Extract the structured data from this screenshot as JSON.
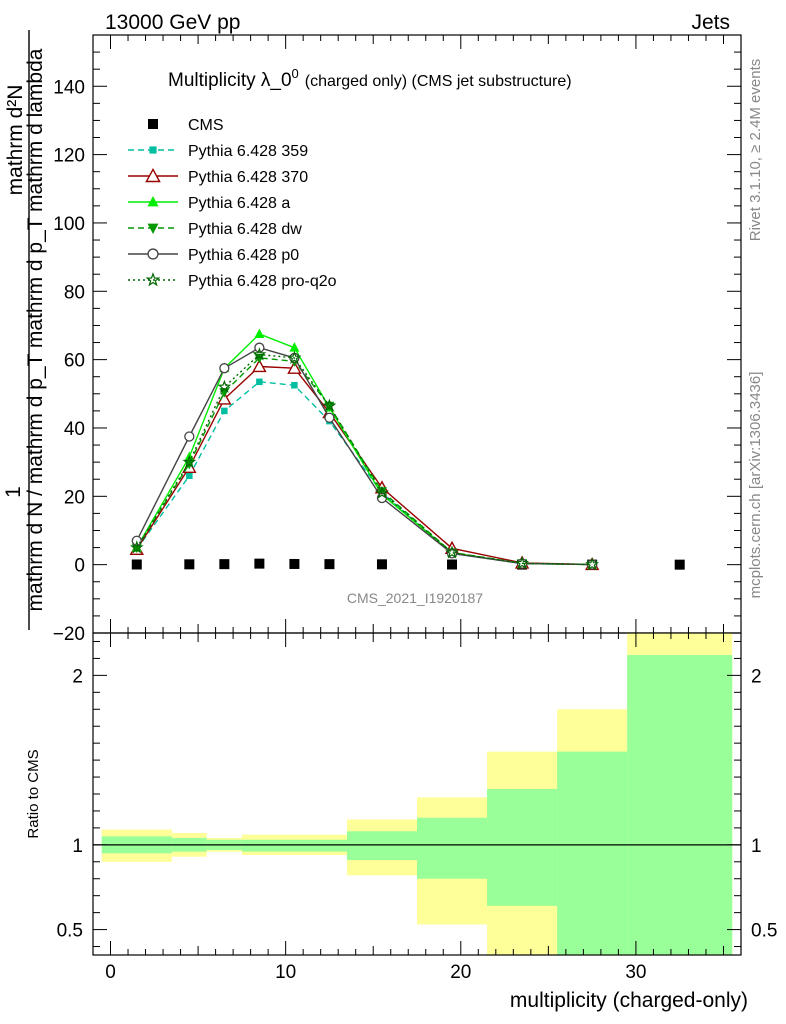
{
  "header": {
    "left": "13000 GeV pp",
    "right": "Jets"
  },
  "side": {
    "rivet": "Rivet 3.1.10, ≥ 2.4M events",
    "mcplots": "mcplots.cern.ch [arXiv:1306.3436]"
  },
  "chart_data": [
    {
      "type": "line",
      "title_main": "Multiplicity λ_0",
      "title_sup": "0",
      "title_small": "(charged only) (CMS jet substructure)",
      "ylabel_numerator": "1",
      "ylabel_denominator": "mathrm d N / mathrm d p_T mathrm d p_T mathrm d lambda",
      "ylabel_top": "mathrm d²N",
      "ylim": [
        -20,
        155
      ],
      "xlim": [
        -1,
        36
      ],
      "yticks": [
        -20,
        0,
        20,
        40,
        60,
        80,
        100,
        120,
        140
      ],
      "ytick_labels": [
        "−20",
        "0",
        "20",
        "40",
        "60",
        "80",
        "100",
        "120",
        "140"
      ],
      "watermark": "CMS_2021_I1920187",
      "x": [
        1.5,
        4.5,
        6.5,
        8.5,
        10.5,
        12.5,
        15.5,
        19.5,
        23.5,
        27.5,
        32.5
      ],
      "series": [
        {
          "name": "CMS",
          "color": "#000000",
          "marker": "square",
          "dash": "none",
          "values": [
            0.05,
            0.1,
            0.15,
            0.3,
            0.2,
            0.15,
            0.1,
            0.05,
            0.02,
            0.01,
            0.0
          ]
        },
        {
          "name": "Pythia 6.428 359",
          "color": "#00bfa0",
          "marker": "small-square",
          "dash": "dashed",
          "values": [
            4.5,
            26,
            45,
            53.5,
            52.5,
            42,
            21,
            3.3,
            0.3,
            0.05,
            null
          ]
        },
        {
          "name": "Pythia 6.428 370",
          "color": "#990000",
          "marker": "triangle-open",
          "dash": "none",
          "values": [
            4.5,
            28.5,
            48.5,
            58,
            57.5,
            44.5,
            22.5,
            4.8,
            0.5,
            0.05,
            null
          ]
        },
        {
          "name": "Pythia 6.428 a",
          "color": "#00ee00",
          "marker": "triangle",
          "dash": "none",
          "values": [
            5,
            31.5,
            57.5,
            67.5,
            63.5,
            46,
            20.5,
            3.5,
            0.3,
            0.03,
            null
          ]
        },
        {
          "name": "Pythia 6.428 dw",
          "color": "#009900",
          "marker": "triangle-down",
          "dash": "dashed",
          "values": [
            5,
            29.5,
            50.5,
            60.5,
            59.5,
            46.5,
            21.5,
            3.6,
            0.4,
            0.04,
            null
          ]
        },
        {
          "name": "Pythia 6.428 p0",
          "color": "#444444",
          "marker": "circle-open",
          "dash": "none",
          "values": [
            7,
            37.5,
            57.5,
            63.5,
            60.5,
            43,
            19.5,
            3.3,
            0.3,
            0.03,
            null
          ]
        },
        {
          "name": "Pythia 6.428 pro-q2o",
          "color": "#006600",
          "marker": "star",
          "dash": "dotted",
          "values": [
            5,
            30,
            52,
            61.5,
            60.5,
            46.5,
            21,
            3.5,
            0.4,
            0.04,
            null
          ]
        }
      ]
    },
    {
      "type": "area",
      "ylabel": "Ratio to CMS",
      "xlabel": "multiplicity (charged-only)",
      "ylim": [
        0.35,
        2.25
      ],
      "xlim": [
        -1,
        36
      ],
      "yticks": [
        0.5,
        1,
        2
      ],
      "ytick_labels": [
        "0.5",
        "1",
        "2"
      ],
      "xticks": [
        0,
        10,
        20,
        30
      ],
      "xtick_labels": [
        "0",
        "10",
        "20",
        "30"
      ],
      "bins": [
        {
          "lo": -0.5,
          "hi": 3.5,
          "stat": [
            0.95,
            1.05
          ],
          "total": [
            0.9,
            1.09
          ]
        },
        {
          "lo": 3.5,
          "hi": 5.5,
          "stat": [
            0.96,
            1.04
          ],
          "total": [
            0.93,
            1.07
          ]
        },
        {
          "lo": 5.5,
          "hi": 7.5,
          "stat": [
            0.97,
            1.03
          ],
          "total": [
            0.96,
            1.04
          ]
        },
        {
          "lo": 7.5,
          "hi": 13.5,
          "stat": [
            0.96,
            1.03
          ],
          "total": [
            0.94,
            1.06
          ]
        },
        {
          "lo": 13.5,
          "hi": 17.5,
          "stat": [
            0.91,
            1.08
          ],
          "total": [
            0.82,
            1.15
          ]
        },
        {
          "lo": 17.5,
          "hi": 21.5,
          "stat": [
            0.8,
            1.16
          ],
          "total": [
            0.53,
            1.28
          ]
        },
        {
          "lo": 21.5,
          "hi": 25.5,
          "stat": [
            0.64,
            1.33
          ],
          "total": [
            0.35,
            1.55
          ]
        },
        {
          "lo": 25.5,
          "hi": 29.5,
          "stat": [
            0.35,
            1.55
          ],
          "total": [
            0.35,
            1.8
          ]
        },
        {
          "lo": 29.5,
          "hi": 35.5,
          "stat": [
            0.35,
            2.12
          ],
          "total": [
            0.35,
            2.25
          ]
        }
      ],
      "colors": {
        "stat": "#99ff99",
        "total": "#ffff99"
      }
    }
  ]
}
